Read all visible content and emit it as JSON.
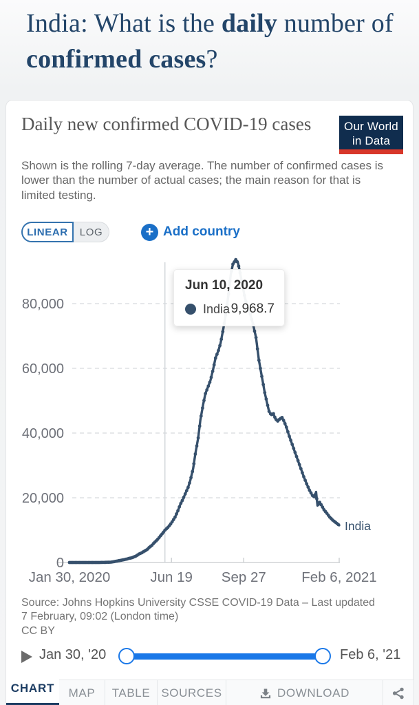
{
  "header": {
    "title_parts": {
      "prefix": "India: What is the ",
      "bold1": "daily",
      "middle": " number of ",
      "bold2": "confirmed cases",
      "suffix": "?"
    }
  },
  "card": {
    "title": "Daily new confirmed COVID-19 cases",
    "subtitle": "Shown is the rolling 7-day average. The number of confirmed cases is lower than the number of actual cases; the main reason for that is limited testing.",
    "logo": {
      "line1": "Our World",
      "line2": "in Data",
      "bg": "#102d4e",
      "bar_color": "#d8372a"
    },
    "controls": {
      "linear_label": "LINEAR",
      "log_label": "LOG",
      "plus": "+",
      "add_country_label": "Add country",
      "accent_blue": "#1a6fc7"
    }
  },
  "chart_data": {
    "type": "line",
    "title": "Daily new confirmed COVID-19 cases",
    "grid": true,
    "x_range_days": 373,
    "ylim": [
      0,
      95000
    ],
    "y_ticks": [
      0,
      20000,
      40000,
      60000,
      80000
    ],
    "x_tick_labels": [
      {
        "label": "Jan 30, 2020",
        "day": 0
      },
      {
        "label": "Jun 19",
        "day": 141
      },
      {
        "label": "Sep 27",
        "day": 241
      },
      {
        "label": "Feb 6, 2021",
        "day": 373
      }
    ],
    "series": [
      {
        "name": "India",
        "color": "#36506c",
        "points": [
          [
            0,
            0
          ],
          [
            10,
            0
          ],
          [
            20,
            0
          ],
          [
            30,
            0
          ],
          [
            38,
            3
          ],
          [
            45,
            12
          ],
          [
            50,
            40
          ],
          [
            55,
            80
          ],
          [
            58,
            120
          ],
          [
            61,
            230
          ],
          [
            65,
            400
          ],
          [
            68,
            560
          ],
          [
            72,
            700
          ],
          [
            75,
            850
          ],
          [
            79,
            1050
          ],
          [
            82,
            1250
          ],
          [
            86,
            1450
          ],
          [
            89,
            1700
          ],
          [
            93,
            2100
          ],
          [
            96,
            2600
          ],
          [
            100,
            3000
          ],
          [
            103,
            3450
          ],
          [
            107,
            3900
          ],
          [
            110,
            4600
          ],
          [
            114,
            5300
          ],
          [
            117,
            6100
          ],
          [
            121,
            6900
          ],
          [
            124,
            7700
          ],
          [
            128,
            8800
          ],
          [
            132,
            9969
          ],
          [
            136,
            10800
          ],
          [
            139,
            11600
          ],
          [
            143,
            12900
          ],
          [
            146,
            14000
          ],
          [
            150,
            16000
          ],
          [
            153,
            17800
          ],
          [
            157,
            19600
          ],
          [
            160,
            21200
          ],
          [
            164,
            23200
          ],
          [
            167,
            25300
          ],
          [
            171,
            29000
          ],
          [
            174,
            33500
          ],
          [
            178,
            38500
          ],
          [
            181,
            44000
          ],
          [
            185,
            49000
          ],
          [
            188,
            52200
          ],
          [
            192,
            54500
          ],
          [
            195,
            56300
          ],
          [
            199,
            60000
          ],
          [
            202,
            63200
          ],
          [
            206,
            65500
          ],
          [
            209,
            67800
          ],
          [
            213,
            72500
          ],
          [
            216,
            76500
          ],
          [
            220,
            83000
          ],
          [
            223,
            89000
          ],
          [
            226,
            92200
          ],
          [
            230,
            93600
          ],
          [
            233,
            92600
          ],
          [
            236,
            89500
          ],
          [
            239,
            85800
          ],
          [
            243,
            81500
          ],
          [
            246,
            79000
          ],
          [
            250,
            76800
          ],
          [
            254,
            73500
          ],
          [
            258,
            69500
          ],
          [
            262,
            62500
          ],
          [
            266,
            57500
          ],
          [
            270,
            52500
          ],
          [
            273,
            49500
          ],
          [
            276,
            46700
          ],
          [
            279,
            45600
          ],
          [
            282,
            46000
          ],
          [
            285,
            44300
          ],
          [
            288,
            43700
          ],
          [
            291,
            44400
          ],
          [
            294,
            44800
          ],
          [
            297,
            43500
          ],
          [
            300,
            41800
          ],
          [
            304,
            39000
          ],
          [
            308,
            36500
          ],
          [
            312,
            34000
          ],
          [
            316,
            31500
          ],
          [
            320,
            29000
          ],
          [
            324,
            26500
          ],
          [
            328,
            24300
          ],
          [
            332,
            22300
          ],
          [
            336,
            20700
          ],
          [
            339,
            20200
          ],
          [
            341,
            21800
          ],
          [
            343,
            17600
          ],
          [
            346,
            18600
          ],
          [
            349,
            17500
          ],
          [
            352,
            16300
          ],
          [
            356,
            15200
          ],
          [
            360,
            14000
          ],
          [
            364,
            13100
          ],
          [
            368,
            12400
          ],
          [
            373,
            11500
          ]
        ]
      }
    ],
    "end_label": "India"
  },
  "tooltip": {
    "date": "Jun 10, 2020",
    "entity": "India",
    "value": "9,968.7",
    "day": 132
  },
  "footer": {
    "source_line1": "Source: Johns Hopkins University CSSE COVID-19 Data – Last updated",
    "source_line2": "7 February, 09:02 (London time)",
    "license": "CC BY"
  },
  "timeline": {
    "start_label": "Jan 30, '20",
    "end_label": "Feb 6, '21"
  },
  "tabs": [
    {
      "label": "CHART",
      "active": true
    },
    {
      "label": "MAP",
      "active": false
    },
    {
      "label": "TABLE",
      "active": false
    },
    {
      "label": "SOURCES",
      "active": false
    },
    {
      "label": "DOWNLOAD",
      "active": false
    },
    {
      "label": "",
      "active": false
    }
  ]
}
